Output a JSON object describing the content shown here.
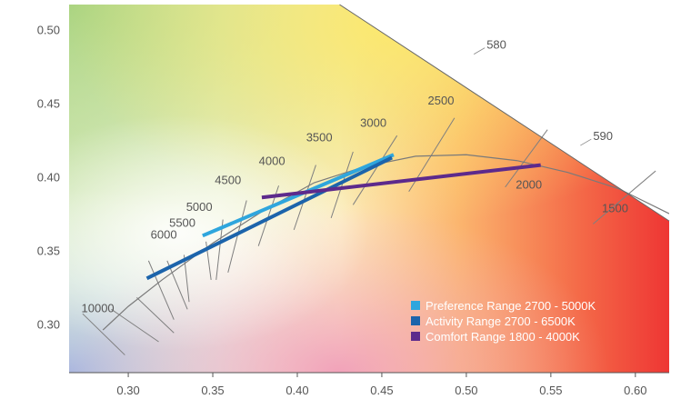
{
  "chart_data": {
    "type": "line",
    "title": "",
    "xlabel": "",
    "ylabel": "",
    "xlim": [
      0.265,
      0.62
    ],
    "ylim": [
      0.267,
      0.517
    ],
    "grid": false,
    "x_ticks": [
      0.3,
      0.35,
      0.4,
      0.45,
      0.5,
      0.55,
      0.6
    ],
    "x_tick_labels": [
      "0.30",
      "0.35",
      "0.40",
      "0.45",
      "0.50",
      "0.55",
      "0.60"
    ],
    "y_ticks": [
      0.3,
      0.35,
      0.4,
      0.45,
      0.5
    ],
    "y_tick_labels": [
      "0.30",
      "0.35",
      "0.40",
      "0.45",
      "0.50"
    ],
    "legend_position": "bottom-right",
    "background": "CIE 1931 chromaticity gamut",
    "spectral_locus": {
      "points": [
        [
          0.425,
          0.517
        ],
        [
          0.62,
          0.37
        ]
      ],
      "wavelength_labels": [
        {
          "label": "580",
          "x": 0.512,
          "y": 0.487
        },
        {
          "label": "590",
          "x": 0.575,
          "y": 0.425
        }
      ]
    },
    "planckian_locus": {
      "points": [
        [
          0.285,
          0.296
        ],
        [
          0.3,
          0.312
        ],
        [
          0.32,
          0.33
        ],
        [
          0.35,
          0.355
        ],
        [
          0.38,
          0.377
        ],
        [
          0.41,
          0.396
        ],
        [
          0.44,
          0.407
        ],
        [
          0.47,
          0.414
        ],
        [
          0.5,
          0.415
        ],
        [
          0.53,
          0.411
        ],
        [
          0.56,
          0.403
        ],
        [
          0.59,
          0.392
        ],
        [
          0.62,
          0.375
        ]
      ],
      "cct_labels": [
        {
          "label": "10000",
          "x": 0.282,
          "y": 0.308
        },
        {
          "label": "6000",
          "x": 0.321,
          "y": 0.358
        },
        {
          "label": "5500",
          "x": 0.332,
          "y": 0.366
        },
        {
          "label": "5000",
          "x": 0.342,
          "y": 0.377
        },
        {
          "label": "4500",
          "x": 0.359,
          "y": 0.395
        },
        {
          "label": "4000",
          "x": 0.385,
          "y": 0.408
        },
        {
          "label": "3500",
          "x": 0.413,
          "y": 0.424
        },
        {
          "label": "3000",
          "x": 0.445,
          "y": 0.434
        },
        {
          "label": "2500",
          "x": 0.485,
          "y": 0.449
        },
        {
          "label": "2000",
          "x": 0.537,
          "y": 0.392
        },
        {
          "label": "1500",
          "x": 0.588,
          "y": 0.376
        }
      ],
      "isotherms": [
        {
          "from": [
            0.273,
            0.307
          ],
          "to": [
            0.298,
            0.279
          ]
        },
        {
          "from": [
            0.29,
            0.31
          ],
          "to": [
            0.318,
            0.288
          ]
        },
        {
          "from": [
            0.305,
            0.318
          ],
          "to": [
            0.327,
            0.294
          ]
        },
        {
          "from": [
            0.312,
            0.343
          ],
          "to": [
            0.327,
            0.303
          ]
        },
        {
          "from": [
            0.323,
            0.343
          ],
          "to": [
            0.335,
            0.31
          ]
        },
        {
          "from": [
            0.333,
            0.347
          ],
          "to": [
            0.336,
            0.315
          ]
        },
        {
          "from": [
            0.346,
            0.356
          ],
          "to": [
            0.349,
            0.33
          ]
        },
        {
          "from": [
            0.356,
            0.371
          ],
          "to": [
            0.352,
            0.33
          ]
        },
        {
          "from": [
            0.37,
            0.384
          ],
          "to": [
            0.359,
            0.335
          ]
        },
        {
          "from": [
            0.389,
            0.394
          ],
          "to": [
            0.377,
            0.353
          ]
        },
        {
          "from": [
            0.411,
            0.408
          ],
          "to": [
            0.398,
            0.364
          ]
        },
        {
          "from": [
            0.433,
            0.417
          ],
          "to": [
            0.42,
            0.372
          ]
        },
        {
          "from": [
            0.459,
            0.428
          ],
          "to": [
            0.433,
            0.381
          ]
        },
        {
          "from": [
            0.493,
            0.44
          ],
          "to": [
            0.466,
            0.39
          ]
        },
        {
          "from": [
            0.548,
            0.432
          ],
          "to": [
            0.523,
            0.393
          ]
        },
        {
          "from": [
            0.612,
            0.404
          ],
          "to": [
            0.575,
            0.368
          ]
        }
      ]
    },
    "series": [
      {
        "name": "Preference Range 2700 - 5000K",
        "color": "#2fa6dd",
        "points": [
          [
            0.344,
            0.36
          ],
          [
            0.457,
            0.415
          ]
        ]
      },
      {
        "name": "Activity Range 2700 - 6500K",
        "color": "#1c64ab",
        "points": [
          [
            0.311,
            0.331
          ],
          [
            0.456,
            0.413
          ]
        ]
      },
      {
        "name": "Comfort Range 1800 - 4000K",
        "color": "#5d2a8c",
        "points": [
          [
            0.379,
            0.386
          ],
          [
            0.544,
            0.408
          ]
        ]
      }
    ]
  }
}
